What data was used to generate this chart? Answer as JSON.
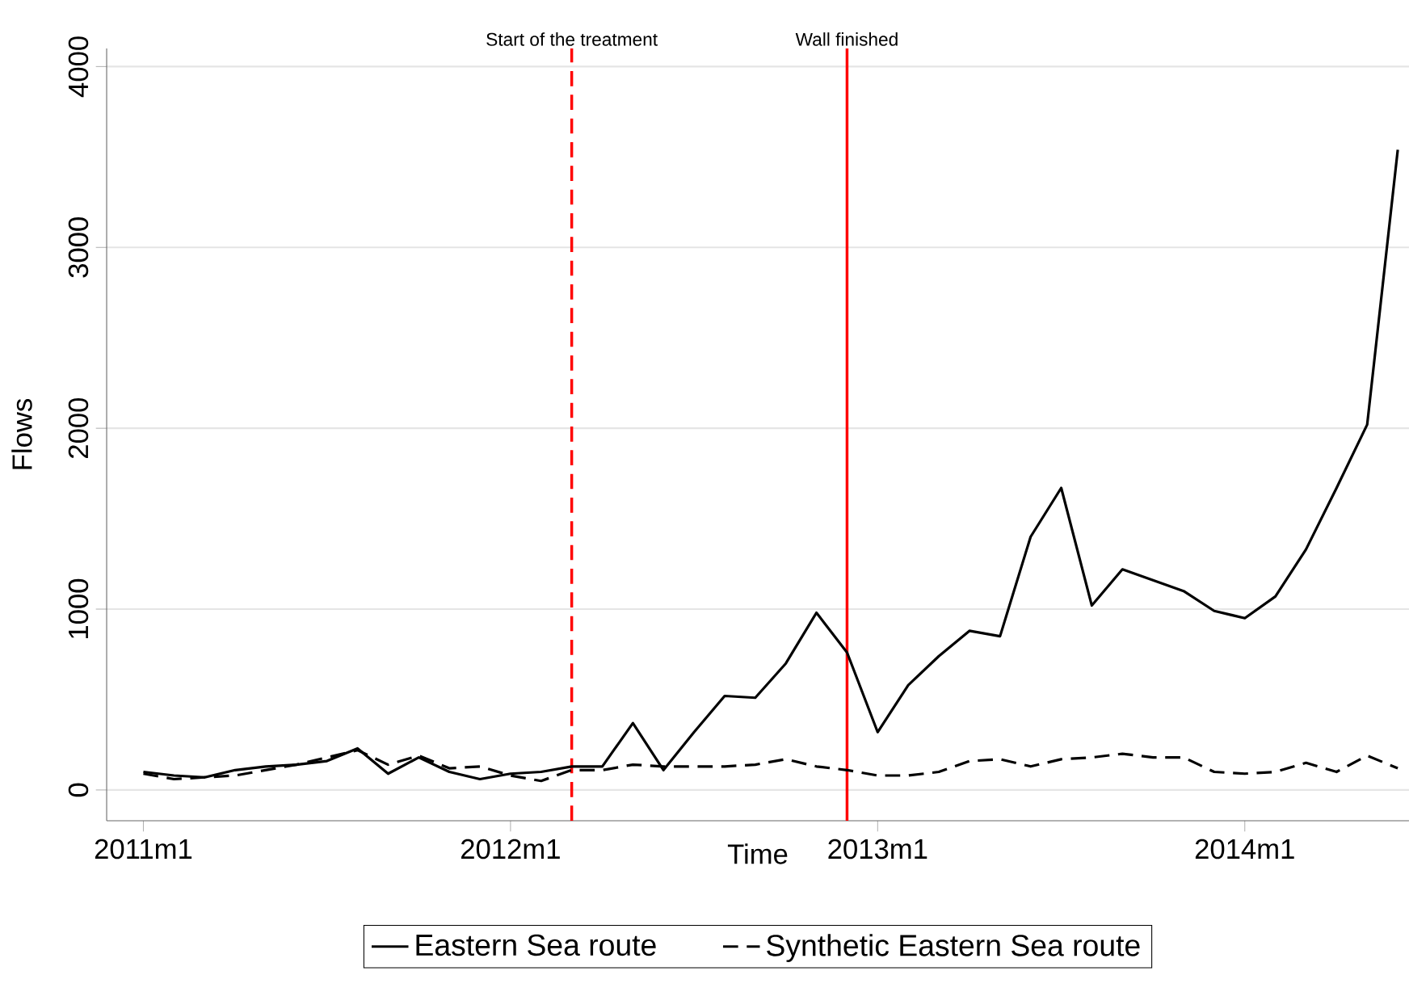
{
  "chart_data": {
    "type": "line",
    "xlabel": "Time",
    "ylabel": "Flows",
    "x": [
      "2011-01",
      "2011-02",
      "2011-03",
      "2011-04",
      "2011-05",
      "2011-06",
      "2011-07",
      "2011-08",
      "2011-09",
      "2011-10",
      "2011-11",
      "2011-12",
      "2012-01",
      "2012-02",
      "2012-03",
      "2012-04",
      "2012-05",
      "2012-06",
      "2012-07",
      "2012-08",
      "2012-09",
      "2012-10",
      "2012-11",
      "2012-12",
      "2013-01",
      "2013-02",
      "2013-03",
      "2013-04",
      "2013-05",
      "2013-06",
      "2013-07",
      "2013-08",
      "2013-09",
      "2013-10",
      "2013-11",
      "2013-12",
      "2014-01",
      "2014-02",
      "2014-03",
      "2014-04",
      "2014-05",
      "2014-06"
    ],
    "series": [
      {
        "name": "Eastern Sea route",
        "color": "#000000",
        "line_style": "solid",
        "values": [
          100,
          80,
          70,
          110,
          130,
          140,
          160,
          230,
          90,
          180,
          100,
          60,
          90,
          100,
          130,
          130,
          370,
          110,
          320,
          520,
          510,
          700,
          980,
          760,
          320,
          580,
          740,
          880,
          850,
          1400,
          1670,
          1020,
          1220,
          1160,
          1100,
          990,
          950,
          1070,
          1330,
          1670,
          2020,
          3540
        ]
      },
      {
        "name": "Synthetic Eastern Sea route",
        "color": "#000000",
        "line_style": "dashed",
        "values": [
          90,
          60,
          70,
          80,
          110,
          140,
          180,
          220,
          140,
          190,
          120,
          130,
          80,
          50,
          110,
          110,
          140,
          130,
          130,
          130,
          140,
          170,
          130,
          110,
          80,
          80,
          100,
          160,
          170,
          130,
          170,
          180,
          200,
          180,
          180,
          100,
          90,
          100,
          150,
          100,
          190,
          120
        ]
      }
    ],
    "xlim": [
      "2010-11-25",
      "2014-06-12"
    ],
    "ylim": [
      -170,
      4100
    ],
    "xticks": [
      {
        "value": "2011-01",
        "label": "2011m1"
      },
      {
        "value": "2012-01",
        "label": "2012m1"
      },
      {
        "value": "2013-01",
        "label": "2013m1"
      },
      {
        "value": "2014-01",
        "label": "2014m1"
      }
    ],
    "yticks": [
      0,
      1000,
      2000,
      3000,
      4000
    ],
    "ref_lines": [
      {
        "axis": "x",
        "value": "2012-03",
        "label": "Start of the treatment",
        "color": "#ff0000",
        "line_style": "dashed"
      },
      {
        "axis": "x",
        "value": "2012-12",
        "label": "Wall finished",
        "color": "#ff0000",
        "line_style": "solid"
      }
    ],
    "grid": "y",
    "legend": "bottom"
  }
}
